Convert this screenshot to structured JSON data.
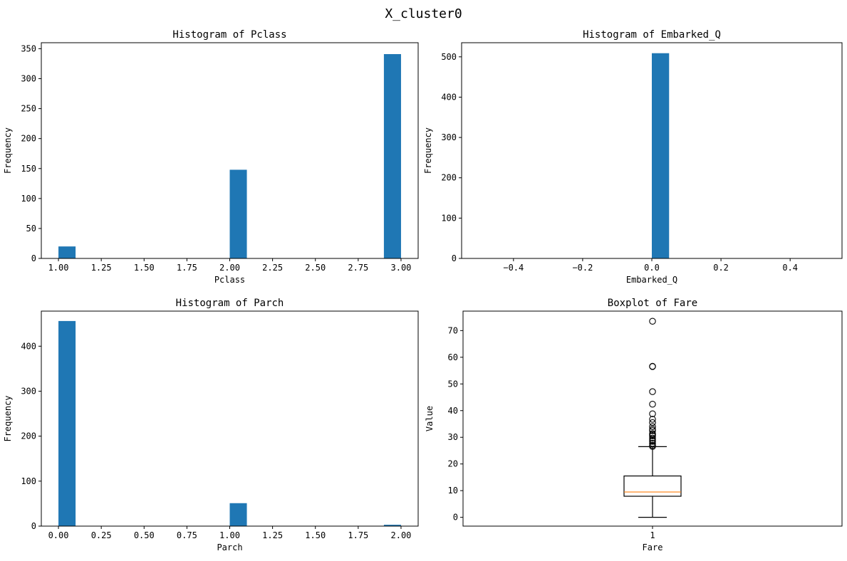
{
  "figure": {
    "title": "X_cluster0"
  },
  "colors": {
    "bar": "#1f77b4",
    "median": "#ff7f0e",
    "axes": "#000000",
    "background": "#ffffff"
  },
  "chart_data": [
    {
      "type": "bar",
      "title": "Histogram of Pclass",
      "xlabel": "Pclass",
      "ylabel": "Frequency",
      "xlim": [
        0.9,
        3.1
      ],
      "ylim": [
        0,
        360
      ],
      "xticks": [
        1.0,
        1.25,
        1.5,
        1.75,
        2.0,
        2.25,
        2.5,
        2.75,
        3.0
      ],
      "xtick_labels": [
        "1.00",
        "1.25",
        "1.50",
        "1.75",
        "2.00",
        "2.25",
        "2.50",
        "2.75",
        "3.00"
      ],
      "yticks": [
        0,
        50,
        100,
        150,
        200,
        250,
        300,
        350
      ],
      "ytick_labels": [
        "0",
        "50",
        "100",
        "150",
        "200",
        "250",
        "300",
        "350"
      ],
      "bars": [
        {
          "x0": 1.0,
          "x1": 1.1,
          "value": 20
        },
        {
          "x0": 2.0,
          "x1": 2.1,
          "value": 148
        },
        {
          "x0": 2.9,
          "x1": 3.0,
          "value": 341
        }
      ]
    },
    {
      "type": "bar",
      "title": "Histogram of Embarked_Q",
      "xlabel": "Embarked_Q",
      "ylabel": "Frequency",
      "xlim": [
        -0.55,
        0.55
      ],
      "ylim": [
        0,
        535
      ],
      "xticks": [
        -0.4,
        -0.2,
        0.0,
        0.2,
        0.4
      ],
      "xtick_labels": [
        "−0.4",
        "−0.2",
        "0.0",
        "0.2",
        "0.4"
      ],
      "yticks": [
        0,
        100,
        200,
        300,
        400,
        500
      ],
      "ytick_labels": [
        "0",
        "100",
        "200",
        "300",
        "400",
        "500"
      ],
      "bars": [
        {
          "x0": 0.0,
          "x1": 0.05,
          "value": 509
        }
      ]
    },
    {
      "type": "bar",
      "title": "Histogram of Parch",
      "xlabel": "Parch",
      "ylabel": "Frequency",
      "xlim": [
        -0.1,
        2.1
      ],
      "ylim": [
        0,
        478
      ],
      "xticks": [
        0.0,
        0.25,
        0.5,
        0.75,
        1.0,
        1.25,
        1.5,
        1.75,
        2.0
      ],
      "xtick_labels": [
        "0.00",
        "0.25",
        "0.50",
        "0.75",
        "1.00",
        "1.25",
        "1.50",
        "1.75",
        "2.00"
      ],
      "yticks": [
        0,
        100,
        200,
        300,
        400
      ],
      "ytick_labels": [
        "0",
        "100",
        "200",
        "300",
        "400"
      ],
      "bars": [
        {
          "x0": 0.0,
          "x1": 0.1,
          "value": 456
        },
        {
          "x0": 1.0,
          "x1": 1.1,
          "value": 51
        },
        {
          "x0": 1.9,
          "x1": 2.0,
          "value": 3
        }
      ]
    },
    {
      "type": "box",
      "title": "Boxplot of Fare",
      "xlabel": "Fare",
      "ylabel": "Value",
      "xlim": [
        0.5,
        1.5
      ],
      "ylim": [
        -3.3,
        77.3
      ],
      "xticks": [
        1
      ],
      "xtick_labels": [
        "1"
      ],
      "yticks": [
        0,
        10,
        20,
        30,
        40,
        50,
        60,
        70
      ],
      "ytick_labels": [
        "0",
        "10",
        "20",
        "30",
        "40",
        "50",
        "60",
        "70"
      ],
      "box": {
        "position": 1,
        "whisker_low": 0,
        "q1": 7.9,
        "median": 9.5,
        "q3": 15.5,
        "whisker_high": 26.5,
        "outliers": [
          26.55,
          27.0,
          27.72,
          28.5,
          29.0,
          29.7,
          30.5,
          31.0,
          31.39,
          32.5,
          33.0,
          34.0,
          35.5,
          36.75,
          38.8,
          42.4,
          47.1,
          56.5,
          56.6,
          73.5
        ]
      }
    }
  ]
}
